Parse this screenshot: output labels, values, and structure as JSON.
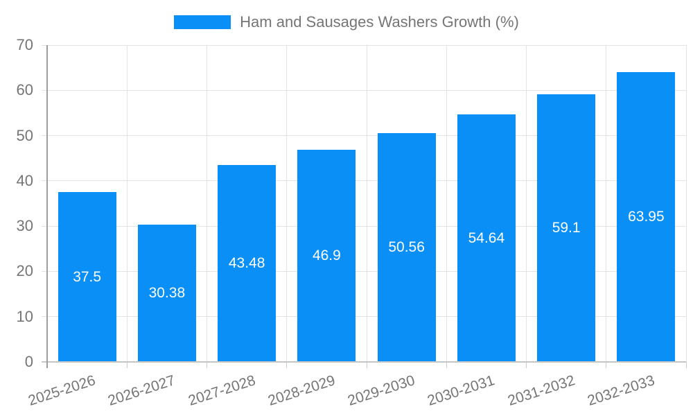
{
  "legend": {
    "label": "Ham and Sausages Washers Growth (%)"
  },
  "colors": {
    "bar": "#0a8ff7",
    "grid": "#e3e3e3",
    "y_axis_line": "#9e9e9e",
    "baseline": "#c6c6c6",
    "tick": "#cccccc",
    "axis_text": "#757575",
    "bar_label_text": "#ffffff",
    "background": "#ffffff"
  },
  "chart_data": {
    "type": "bar",
    "title": "Ham and Sausages Washers Growth (%)",
    "series_name": "Ham and Sausages Washers Growth (%)",
    "categories": [
      "2025-2026",
      "2026-2027",
      "2027-2028",
      "2028-2029",
      "2029-2030",
      "2030-2031",
      "2031-2032",
      "2032-2033"
    ],
    "values": [
      37.5,
      30.38,
      43.48,
      46.9,
      50.56,
      54.64,
      59.1,
      63.95
    ],
    "data_labels": [
      "37.5",
      "30.38",
      "43.48",
      "46.9",
      "50.56",
      "54.64",
      "59.1",
      "63.95"
    ],
    "xlabel": "",
    "ylabel": "",
    "ylim": [
      0,
      70
    ],
    "yticks": [
      0,
      10,
      20,
      30,
      40,
      50,
      60,
      70
    ],
    "grid": true,
    "legend_position": "top-center",
    "x_label_rotation_deg": -18
  }
}
